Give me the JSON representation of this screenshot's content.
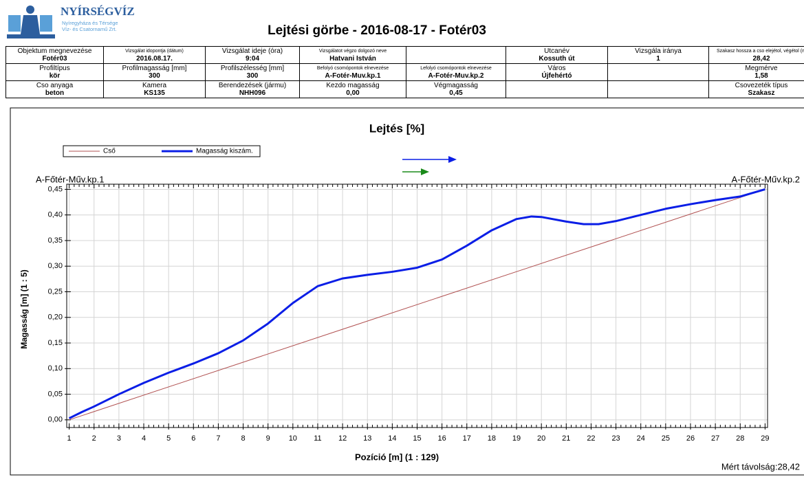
{
  "header": {
    "logo": {
      "name": "NYÍRSÉGVÍZ",
      "line1": "Nyíregyháza és Térsége",
      "line2": "Víz- és Csatornamű Zrt."
    },
    "title": "Lejtési görbe - 2016-08-17 - Fotér03"
  },
  "table": {
    "rows": [
      [
        {
          "label": "Objektum megnevezése",
          "value": "Fotér03"
        },
        {
          "label": "Vizsgálat idopontja (dátum)",
          "value": "2016.08.17."
        },
        {
          "label": "Vizsgálat ideje (óra)",
          "value": "9:04"
        },
        {
          "label": "Vizsgálatot végzo dolgozó neve",
          "value": "Hatvani István"
        },
        null,
        {
          "label": "Utcanév",
          "value": "Kossuth út"
        },
        {
          "label": "Vizsgála iránya",
          "value": "1"
        },
        {
          "label": "Szakasz hossza a cso elejétol, végétol (m",
          "value": "28,42"
        }
      ],
      [
        {
          "label": "Profiltípus",
          "value": "kör"
        },
        {
          "label": "Profilmagasság [mm]",
          "value": "300"
        },
        {
          "label": "Profilszélesség [mm]",
          "value": "300"
        },
        {
          "label": "Befolyó csomópontok elnevezése",
          "value": "A-Fotér-Muv.kp.1"
        },
        {
          "label": "Lefolyó csomópontok elnevezése",
          "value": "A-Fotér-Muv.kp.2"
        },
        {
          "label": "Város",
          "value": "Újfehértó"
        },
        null,
        {
          "label": "Megmérve",
          "value": "1,58"
        }
      ],
      [
        {
          "label": "Cso anyaga",
          "value": "beton"
        },
        {
          "label": "Kamera",
          "value": "KS135"
        },
        {
          "label": "Berendezések (jármu)",
          "value": "NHH096"
        },
        {
          "label": "Kezdo magasság",
          "value": "0,00"
        },
        {
          "label": "Végmagasság",
          "value": "0,45"
        },
        null,
        null,
        {
          "label": "Csovezeték típus",
          "value": "Szakasz"
        }
      ]
    ]
  },
  "chart_data": {
    "type": "line",
    "title": "Lejtés [%]",
    "x_label": "Pozíció [m] (1 : 129)",
    "y_label": "Magasság [m] (1 : 5)",
    "start_label": "A-Főtér-Műv.kp.1",
    "end_label": "A-Főtér-Műv.kp.2",
    "annotation": "Mért távolság:28,42",
    "grid": true,
    "legend": "top-left",
    "xlim": [
      0.9,
      29.1
    ],
    "ylim": [
      -0.015,
      0.46
    ],
    "xticks": [
      1,
      2,
      3,
      4,
      5,
      6,
      7,
      8,
      9,
      10,
      11,
      12,
      13,
      14,
      15,
      16,
      17,
      18,
      19,
      20,
      21,
      22,
      23,
      24,
      25,
      26,
      27,
      28,
      29
    ],
    "yticks": [
      {
        "value": 0,
        "label": "0,00"
      },
      {
        "value": 0.05,
        "label": "0,05"
      },
      {
        "value": 0.1,
        "label": "0,10"
      },
      {
        "value": 0.15,
        "label": "0,15"
      },
      {
        "value": 0.2,
        "label": "0,20"
      },
      {
        "value": 0.25,
        "label": "0,25"
      },
      {
        "value": 0.3,
        "label": "0,30"
      },
      {
        "value": 0.35,
        "label": "0,35"
      },
      {
        "value": 0.4,
        "label": "0,40"
      },
      {
        "value": 0.45,
        "label": "0,45"
      }
    ],
    "series": [
      {
        "name": "Cső",
        "color": "#b05050",
        "width": 1,
        "x": [
          1,
          29
        ],
        "values": [
          0,
          0.45
        ]
      },
      {
        "name": "Magasság kiszám.",
        "color": "#0a1ee6",
        "width": 3,
        "x": [
          1,
          1.5,
          2,
          3,
          4,
          5,
          6,
          7,
          8,
          9,
          10,
          11,
          12,
          13,
          14,
          15,
          16,
          17,
          18,
          19,
          19.6,
          20,
          21,
          21.7,
          22.3,
          23,
          24,
          25,
          26,
          27,
          28,
          29
        ],
        "values": [
          0.003,
          0.015,
          0.026,
          0.05,
          0.072,
          0.092,
          0.11,
          0.13,
          0.155,
          0.188,
          0.228,
          0.261,
          0.276,
          0.283,
          0.289,
          0.297,
          0.313,
          0.34,
          0.37,
          0.392,
          0.397,
          0.396,
          0.387,
          0.382,
          0.382,
          0.388,
          0.4,
          0.412,
          0.421,
          0.429,
          0.436,
          0.45
        ]
      }
    ]
  }
}
